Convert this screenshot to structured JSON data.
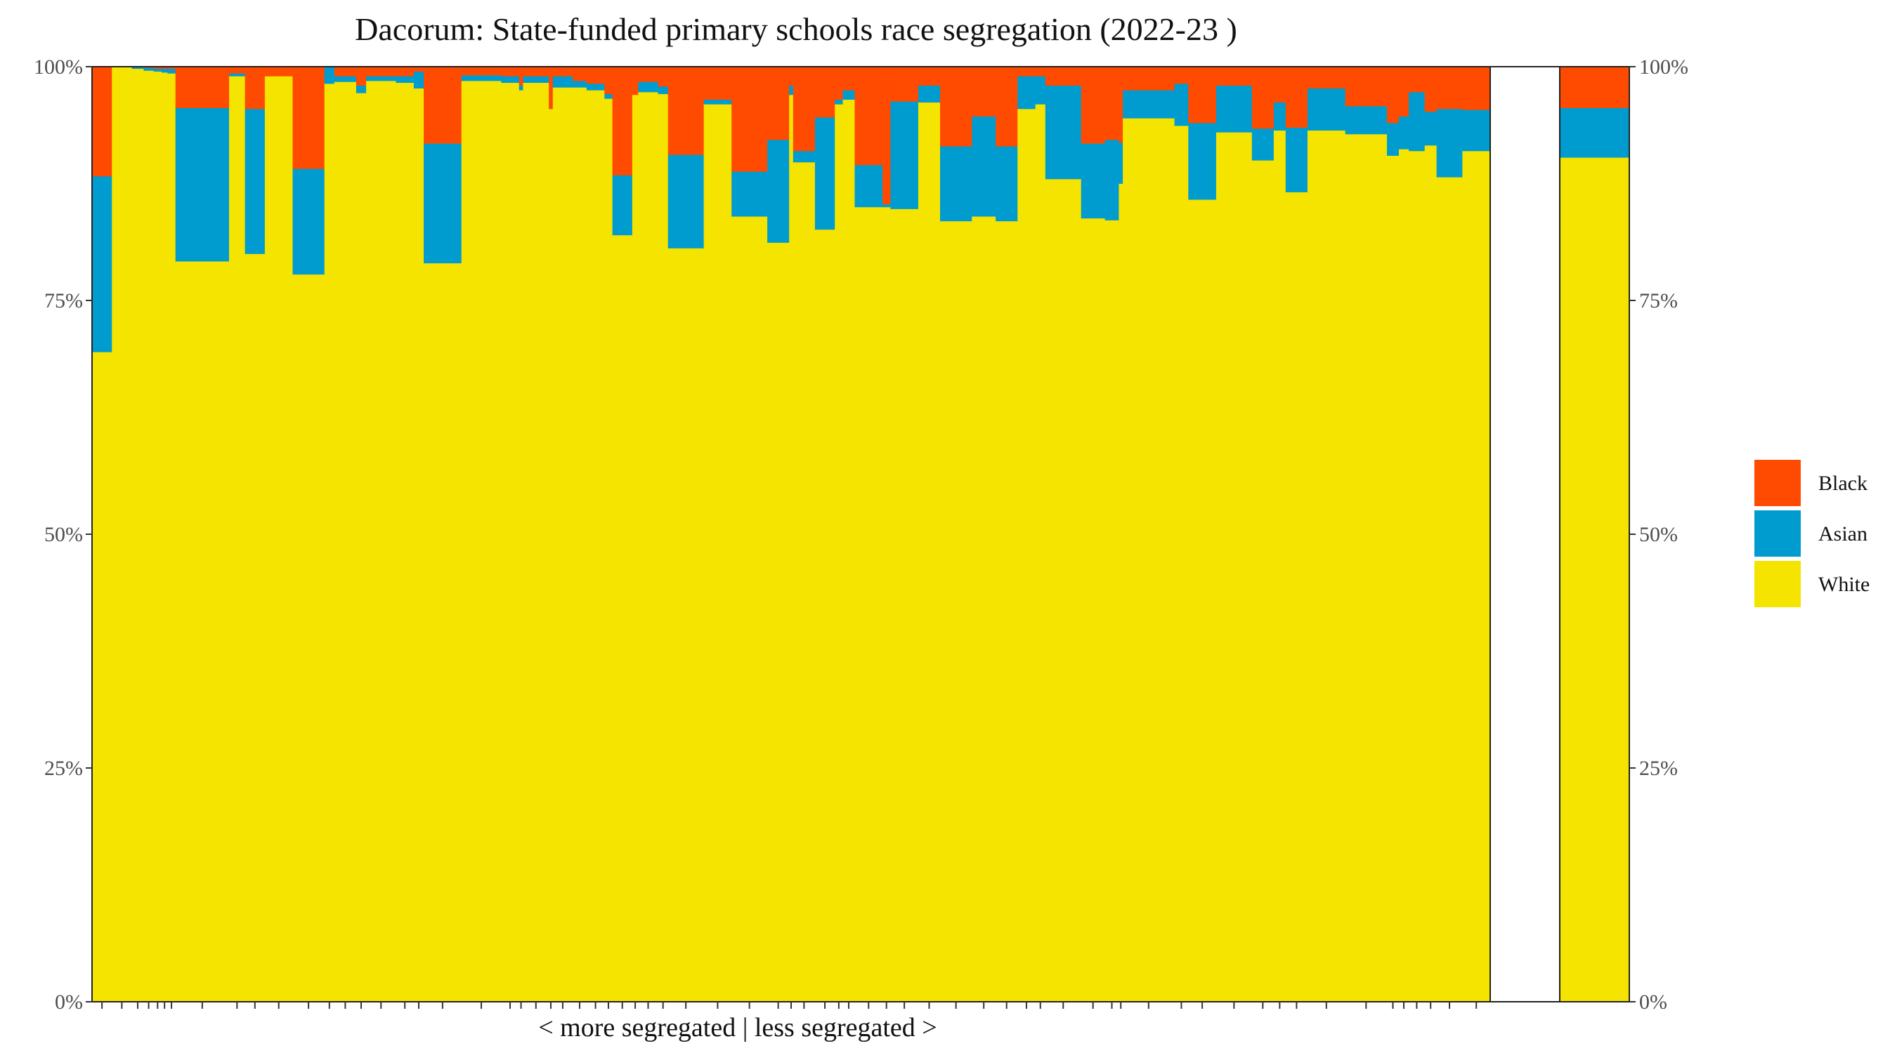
{
  "chart_data": {
    "type": "bar",
    "subtype": "stacked-variable-width-mosaic",
    "title": "Dacorum: State-funded primary schools race segregation (2022-23 )",
    "x_caption": "< more segregated | less segregated >",
    "y_ticks": [
      "0%",
      "25%",
      "50%",
      "75%",
      "100%"
    ],
    "ylim": [
      0,
      1
    ],
    "grid": false,
    "legend_position": "right",
    "colors": {
      "Black": "#ff4b00",
      "Asian": "#009ccf",
      "White": "#f5e300"
    },
    "legend": [
      {
        "name": "Black",
        "color": "#ff4b00"
      },
      {
        "name": "Asian",
        "color": "#009ccf"
      },
      {
        "name": "White",
        "color": "#f5e300"
      }
    ],
    "series_order": [
      "White",
      "Asian",
      "Black"
    ],
    "schools": [
      {
        "width": 1.0,
        "white": 0.695,
        "asian": 0.188,
        "black": 0.117
      },
      {
        "width": 1.0,
        "white": 1.0,
        "asian": 0.0,
        "black": 0.0
      },
      {
        "width": 0.6,
        "white": 0.998,
        "asian": 0.002,
        "black": 0.0
      },
      {
        "width": 0.5,
        "white": 0.996,
        "asian": 0.003,
        "black": 0.001
      },
      {
        "width": 0.4,
        "white": 0.995,
        "asian": 0.003,
        "black": 0.002
      },
      {
        "width": 0.3,
        "white": 0.994,
        "asian": 0.004,
        "black": 0.002
      },
      {
        "width": 0.4,
        "white": 0.993,
        "asian": 0.005,
        "black": 0.002
      },
      {
        "width": 2.7,
        "white": 0.792,
        "asian": 0.164,
        "black": 0.044
      },
      {
        "width": 0.8,
        "white": 0.99,
        "asian": 0.003,
        "black": 0.007
      },
      {
        "width": 1.0,
        "white": 0.8,
        "asian": 0.155,
        "black": 0.045
      },
      {
        "width": 1.4,
        "white": 0.99,
        "asian": 0.0,
        "black": 0.01
      },
      {
        "width": 1.6,
        "white": 0.778,
        "asian": 0.113,
        "black": 0.109
      },
      {
        "width": 0.5,
        "white": 0.982,
        "asian": 0.018,
        "black": 0.0
      },
      {
        "width": 1.1,
        "white": 0.984,
        "asian": 0.006,
        "black": 0.01
      },
      {
        "width": 0.5,
        "white": 0.972,
        "asian": 0.008,
        "black": 0.02
      },
      {
        "width": 1.5,
        "white": 0.985,
        "asian": 0.005,
        "black": 0.01
      },
      {
        "width": 0.9,
        "white": 0.983,
        "asian": 0.007,
        "black": 0.01
      },
      {
        "width": 0.5,
        "white": 0.977,
        "asian": 0.018,
        "black": 0.005
      },
      {
        "width": 1.9,
        "white": 0.79,
        "asian": 0.128,
        "black": 0.082
      },
      {
        "width": 2.0,
        "white": 0.985,
        "asian": 0.006,
        "black": 0.009
      },
      {
        "width": 0.9,
        "white": 0.983,
        "asian": 0.007,
        "black": 0.01
      },
      {
        "width": 0.2,
        "white": 0.975,
        "asian": 0.005,
        "black": 0.02
      },
      {
        "width": 1.3,
        "white": 0.983,
        "asian": 0.007,
        "black": 0.01
      },
      {
        "width": 0.2,
        "white": 0.955,
        "asian": 0.0,
        "black": 0.045
      },
      {
        "width": 1.0,
        "white": 0.978,
        "asian": 0.012,
        "black": 0.01
      },
      {
        "width": 0.7,
        "white": 0.978,
        "asian": 0.007,
        "black": 0.015
      },
      {
        "width": 0.9,
        "white": 0.975,
        "asian": 0.007,
        "black": 0.018
      },
      {
        "width": 0.4,
        "white": 0.966,
        "asian": 0.005,
        "black": 0.029
      },
      {
        "width": 1.0,
        "white": 0.82,
        "asian": 0.064,
        "black": 0.116
      },
      {
        "width": 0.3,
        "white": 0.97,
        "asian": 0.0,
        "black": 0.03
      },
      {
        "width": 1.0,
        "white": 0.973,
        "asian": 0.011,
        "black": 0.016
      },
      {
        "width": 0.5,
        "white": 0.971,
        "asian": 0.008,
        "black": 0.021
      },
      {
        "width": 1.8,
        "white": 0.806,
        "asian": 0.1,
        "black": 0.094
      },
      {
        "width": 1.4,
        "white": 0.96,
        "asian": 0.005,
        "black": 0.035
      },
      {
        "width": 1.8,
        "white": 0.84,
        "asian": 0.048,
        "black": 0.112
      },
      {
        "width": 1.1,
        "white": 0.812,
        "asian": 0.11,
        "black": 0.078
      },
      {
        "width": 0.2,
        "white": 0.97,
        "asian": 0.01,
        "black": 0.02
      },
      {
        "width": 1.1,
        "white": 0.898,
        "asian": 0.012,
        "black": 0.09
      },
      {
        "width": 1.0,
        "white": 0.826,
        "asian": 0.12,
        "black": 0.054
      },
      {
        "width": 0.4,
        "white": 0.96,
        "asian": 0.005,
        "black": 0.035
      },
      {
        "width": 0.6,
        "white": 0.965,
        "asian": 0.01,
        "black": 0.025
      },
      {
        "width": 1.4,
        "white": 0.85,
        "asian": 0.045,
        "black": 0.105
      },
      {
        "width": 0.4,
        "white": 0.85,
        "asian": 0.003,
        "black": 0.147
      },
      {
        "width": 1.4,
        "white": 0.848,
        "asian": 0.115,
        "black": 0.037
      },
      {
        "width": 1.1,
        "white": 0.962,
        "asian": 0.018,
        "black": 0.02
      },
      {
        "width": 1.6,
        "white": 0.835,
        "asian": 0.08,
        "black": 0.085
      },
      {
        "width": 1.2,
        "white": 0.84,
        "asian": 0.107,
        "black": 0.053
      },
      {
        "width": 1.1,
        "white": 0.835,
        "asian": 0.08,
        "black": 0.085
      },
      {
        "width": 0.9,
        "white": 0.955,
        "asian": 0.035,
        "black": 0.01
      },
      {
        "width": 0.5,
        "white": 0.96,
        "asian": 0.03,
        "black": 0.01
      },
      {
        "width": 1.8,
        "white": 0.88,
        "asian": 0.1,
        "black": 0.02
      },
      {
        "width": 1.2,
        "white": 0.838,
        "asian": 0.08,
        "black": 0.082
      },
      {
        "width": 0.7,
        "white": 0.836,
        "asian": 0.086,
        "black": 0.078
      },
      {
        "width": 0.2,
        "white": 0.875,
        "asian": 0.044,
        "black": 0.081
      },
      {
        "width": 2.6,
        "white": 0.945,
        "asian": 0.03,
        "black": 0.025
      },
      {
        "width": 0.7,
        "white": 0.937,
        "asian": 0.045,
        "black": 0.018
      },
      {
        "width": 1.4,
        "white": 0.858,
        "asian": 0.082,
        "black": 0.06
      },
      {
        "width": 1.8,
        "white": 0.93,
        "asian": 0.05,
        "black": 0.02
      },
      {
        "width": 1.1,
        "white": 0.9,
        "asian": 0.034,
        "black": 0.066
      },
      {
        "width": 0.6,
        "white": 0.932,
        "asian": 0.03,
        "black": 0.038
      },
      {
        "width": 1.1,
        "white": 0.866,
        "asian": 0.069,
        "black": 0.065
      },
      {
        "width": 1.9,
        "white": 0.932,
        "asian": 0.045,
        "black": 0.023
      },
      {
        "width": 2.1,
        "white": 0.928,
        "asian": 0.03,
        "black": 0.042
      },
      {
        "width": 0.6,
        "white": 0.905,
        "asian": 0.035,
        "black": 0.06
      },
      {
        "width": 0.5,
        "white": 0.912,
        "asian": 0.035,
        "black": 0.053
      },
      {
        "width": 0.8,
        "white": 0.91,
        "asian": 0.063,
        "black": 0.027
      },
      {
        "width": 0.6,
        "white": 0.916,
        "asian": 0.036,
        "black": 0.048
      },
      {
        "width": 1.3,
        "white": 0.882,
        "asian": 0.073,
        "black": 0.045
      },
      {
        "width": 1.4,
        "white": 0.91,
        "asian": 0.044,
        "black": 0.046
      }
    ],
    "all_schools": {
      "white": 0.903,
      "asian": 0.053,
      "black": 0.044
    }
  }
}
